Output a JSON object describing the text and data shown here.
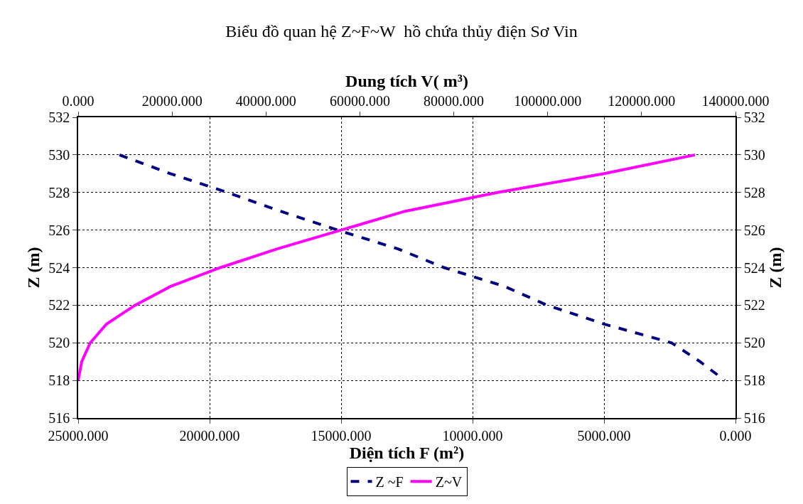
{
  "chart_data": {
    "type": "line",
    "title": "Biểu đồ quan hệ Z~F~W  hồ chứa thủy điện Sơ Vin",
    "xlabel": "Diện tích F (m²)",
    "x2label": "Dung tích V( m³)",
    "ylabel": "Z (m)",
    "y2label": "Z (m)",
    "series": [
      {
        "name": "Z ~F",
        "color": "#000080",
        "line_style": "dashed",
        "x": [
          23430,
          21490,
          19320,
          17300,
          15135,
          12840,
          11080,
          8780,
          7160,
          5000,
          2430,
          1350,
          410
        ],
        "values": [
          530,
          529,
          528,
          527,
          526,
          525,
          524,
          523,
          522,
          521,
          520,
          519,
          518
        ]
      },
      {
        "name": "Z~V",
        "color": "#ff00ff",
        "line_style": "solid",
        "axis": "x2",
        "x": [
          131370,
          112000,
          89300,
          69620,
          56000,
          42380,
          30270,
          19680,
          12110,
          6050,
          2570,
          760,
          0
        ],
        "values": [
          530,
          529,
          528,
          527,
          526,
          525,
          524,
          523,
          522,
          521,
          520,
          519,
          518
        ]
      }
    ],
    "xlim": [
      25000,
      0
    ],
    "xticks": [
      {
        "value": 25000,
        "label": "25000.000"
      },
      {
        "value": 20000,
        "label": "20000.000"
      },
      {
        "value": 15000,
        "label": "15000.000"
      },
      {
        "value": 10000,
        "label": "10000.000"
      },
      {
        "value": 5000,
        "label": "5000.000"
      },
      {
        "value": 0,
        "label": "0.000"
      }
    ],
    "x2lim": [
      0,
      140000
    ],
    "x2ticks": [
      {
        "value": 0,
        "label": "0.000"
      },
      {
        "value": 20000,
        "label": "20000.000"
      },
      {
        "value": 40000,
        "label": "40000.000"
      },
      {
        "value": 60000,
        "label": "60000.000"
      },
      {
        "value": 80000,
        "label": "80000.000"
      },
      {
        "value": 100000,
        "label": "100000.000"
      },
      {
        "value": 120000,
        "label": "120000.000"
      },
      {
        "value": 140000,
        "label": "140000.000"
      }
    ],
    "ylim": [
      516,
      532
    ],
    "yticks": [
      516,
      518,
      520,
      522,
      524,
      526,
      528,
      530,
      532
    ],
    "y2lim": [
      516,
      532
    ],
    "y2ticks": [
      516,
      518,
      520,
      522,
      524,
      526,
      528,
      530,
      532
    ],
    "grid": true,
    "legend": "bottom",
    "marker": "none"
  }
}
